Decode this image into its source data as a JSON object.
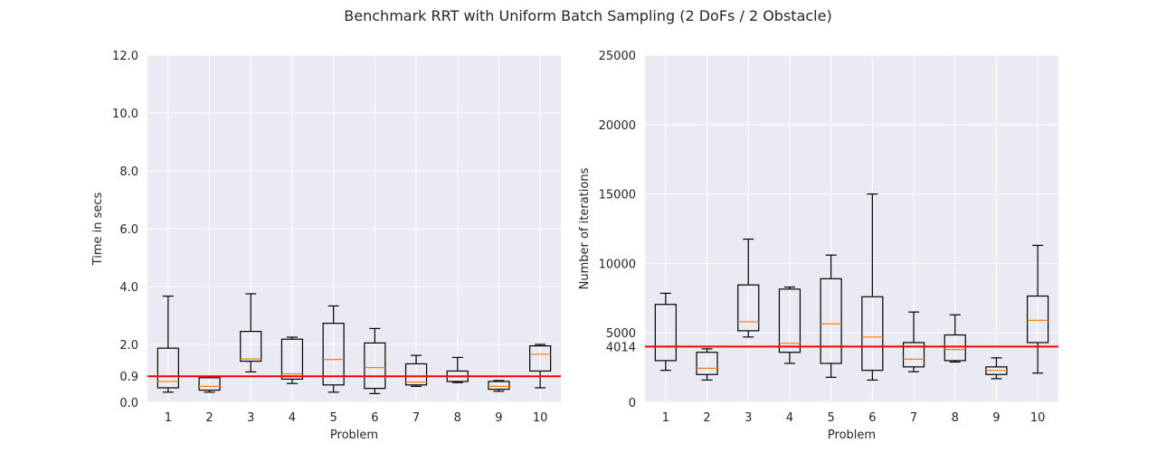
{
  "suptitle": "Benchmark RRT with Uniform Batch Sampling (2 DoFs / 2 Obstacle)",
  "colors": {
    "background": "#eaeaf2",
    "grid": "#ffffff",
    "box": "#000000",
    "median": "#ff7f0e",
    "reference": "#ff0000"
  },
  "chart_data": [
    {
      "type": "box",
      "title": "",
      "xlabel": "Problem",
      "ylabel": "Time in secs",
      "categories": [
        "1",
        "2",
        "3",
        "4",
        "5",
        "6",
        "7",
        "8",
        "9",
        "10"
      ],
      "ylim": [
        0,
        12
      ],
      "yticks": [
        0,
        2,
        4,
        6,
        8,
        10,
        12
      ],
      "ytick_labels": [
        "0.0",
        "2.0",
        "4.0",
        "6.0",
        "8.0",
        "10.0",
        "12.0"
      ],
      "reference_line": {
        "value": 0.9,
        "label": "0.9"
      },
      "grid": true,
      "boxes": [
        {
          "whislo": 0.35,
          "q1": 0.5,
          "med": 0.72,
          "q3": 1.87,
          "whishi": 3.67
        },
        {
          "whislo": 0.35,
          "q1": 0.42,
          "med": 0.55,
          "q3": 0.85,
          "whishi": 0.9
        },
        {
          "whislo": 1.05,
          "q1": 1.42,
          "med": 1.5,
          "q3": 2.45,
          "whishi": 3.75
        },
        {
          "whislo": 0.65,
          "q1": 0.8,
          "med": 0.98,
          "q3": 2.18,
          "whishi": 2.25
        },
        {
          "whislo": 0.35,
          "q1": 0.6,
          "med": 1.48,
          "q3": 2.73,
          "whishi": 3.33
        },
        {
          "whislo": 0.3,
          "q1": 0.48,
          "med": 1.2,
          "q3": 2.05,
          "whishi": 2.55
        },
        {
          "whislo": 0.55,
          "q1": 0.6,
          "med": 0.7,
          "q3": 1.33,
          "whishi": 1.62
        },
        {
          "whislo": 0.68,
          "q1": 0.72,
          "med": 0.88,
          "q3": 1.08,
          "whishi": 1.55
        },
        {
          "whislo": 0.38,
          "q1": 0.45,
          "med": 0.55,
          "q3": 0.72,
          "whishi": 0.75
        },
        {
          "whislo": 0.5,
          "q1": 1.08,
          "med": 1.66,
          "q3": 1.95,
          "whishi": 2.0
        }
      ]
    },
    {
      "type": "box",
      "title": "",
      "xlabel": "Problem",
      "ylabel": "Number of iterations",
      "categories": [
        "1",
        "2",
        "3",
        "4",
        "5",
        "6",
        "7",
        "8",
        "9",
        "10"
      ],
      "ylim": [
        0,
        25000
      ],
      "yticks": [
        0,
        5000,
        10000,
        15000,
        20000,
        25000
      ],
      "ytick_labels": [
        "0",
        "5000",
        "10000",
        "15000",
        "20000",
        "25000"
      ],
      "reference_line": {
        "value": 4014,
        "label": "4014"
      },
      "grid": true,
      "boxes": [
        {
          "whislo": 2300,
          "q1": 3000,
          "med": 4000,
          "q3": 7050,
          "whishi": 7850
        },
        {
          "whislo": 1600,
          "q1": 2000,
          "med": 2450,
          "q3": 3600,
          "whishi": 3850
        },
        {
          "whislo": 4700,
          "q1": 5150,
          "med": 5800,
          "q3": 8450,
          "whishi": 11750
        },
        {
          "whislo": 2800,
          "q1": 3600,
          "med": 4250,
          "q3": 8150,
          "whishi": 8300
        },
        {
          "whislo": 1800,
          "q1": 2800,
          "med": 5650,
          "q3": 8900,
          "whishi": 10600
        },
        {
          "whislo": 1600,
          "q1": 2300,
          "med": 4700,
          "q3": 7600,
          "whishi": 15000
        },
        {
          "whislo": 2200,
          "q1": 2550,
          "med": 3100,
          "q3": 4300,
          "whishi": 6500
        },
        {
          "whislo": 2900,
          "q1": 3000,
          "med": 3800,
          "q3": 4850,
          "whishi": 6300
        },
        {
          "whislo": 1700,
          "q1": 2000,
          "med": 2300,
          "q3": 2550,
          "whishi": 3200
        },
        {
          "whislo": 2100,
          "q1": 4300,
          "med": 5900,
          "q3": 7650,
          "whishi": 11300
        }
      ]
    }
  ]
}
